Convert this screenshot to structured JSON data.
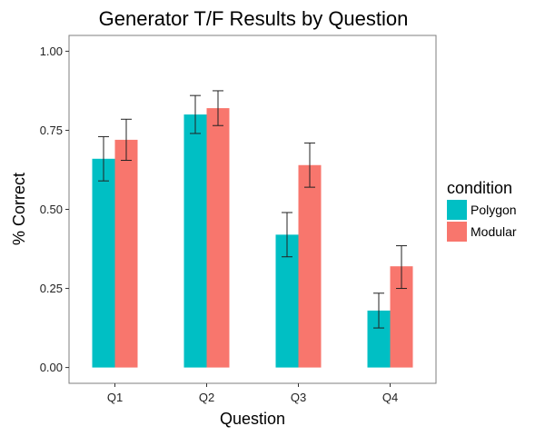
{
  "chart_data": {
    "type": "bar",
    "title": "Generator T/F Results by Question",
    "xlabel": "Question",
    "ylabel": "% Correct",
    "categories": [
      "Q1",
      "Q2",
      "Q3",
      "Q4"
    ],
    "ylim": [
      -0.05,
      1.05
    ],
    "yticks": [
      0.0,
      0.25,
      0.5,
      0.75,
      1.0
    ],
    "ytick_labels": [
      "0.00",
      "0.25",
      "0.50",
      "0.75",
      "1.00"
    ],
    "grid": false,
    "legend": {
      "title": "condition",
      "position": "right"
    },
    "series": [
      {
        "name": "Polygon",
        "color": "#00BFC4",
        "values": [
          0.66,
          0.8,
          0.42,
          0.18
        ],
        "error_low": [
          0.59,
          0.74,
          0.35,
          0.125
        ],
        "error_high": [
          0.73,
          0.86,
          0.49,
          0.235
        ]
      },
      {
        "name": "Modular",
        "color": "#F8766D",
        "values": [
          0.72,
          0.82,
          0.64,
          0.32
        ],
        "error_low": [
          0.655,
          0.765,
          0.57,
          0.25
        ],
        "error_high": [
          0.785,
          0.875,
          0.71,
          0.385
        ]
      }
    ]
  }
}
